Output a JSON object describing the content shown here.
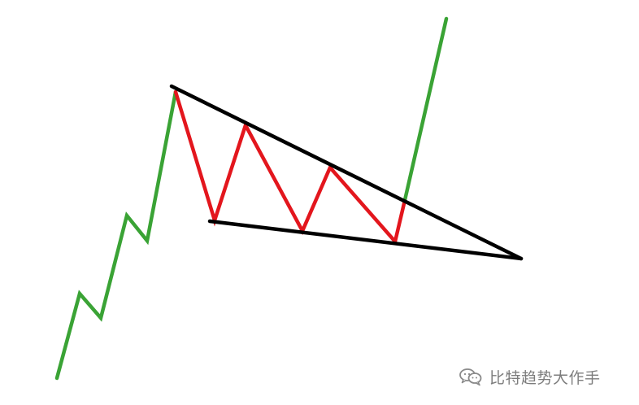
{
  "diagram": {
    "kind": "falling-wedge-breakout",
    "colors": {
      "uptrend": "#3aa335",
      "swings": "#e3161d",
      "trendlines": "#000000",
      "background": "#ffffff"
    }
  },
  "watermark": {
    "text": "比特趋势大作手",
    "icon": "chat-bubbles-icon"
  }
}
